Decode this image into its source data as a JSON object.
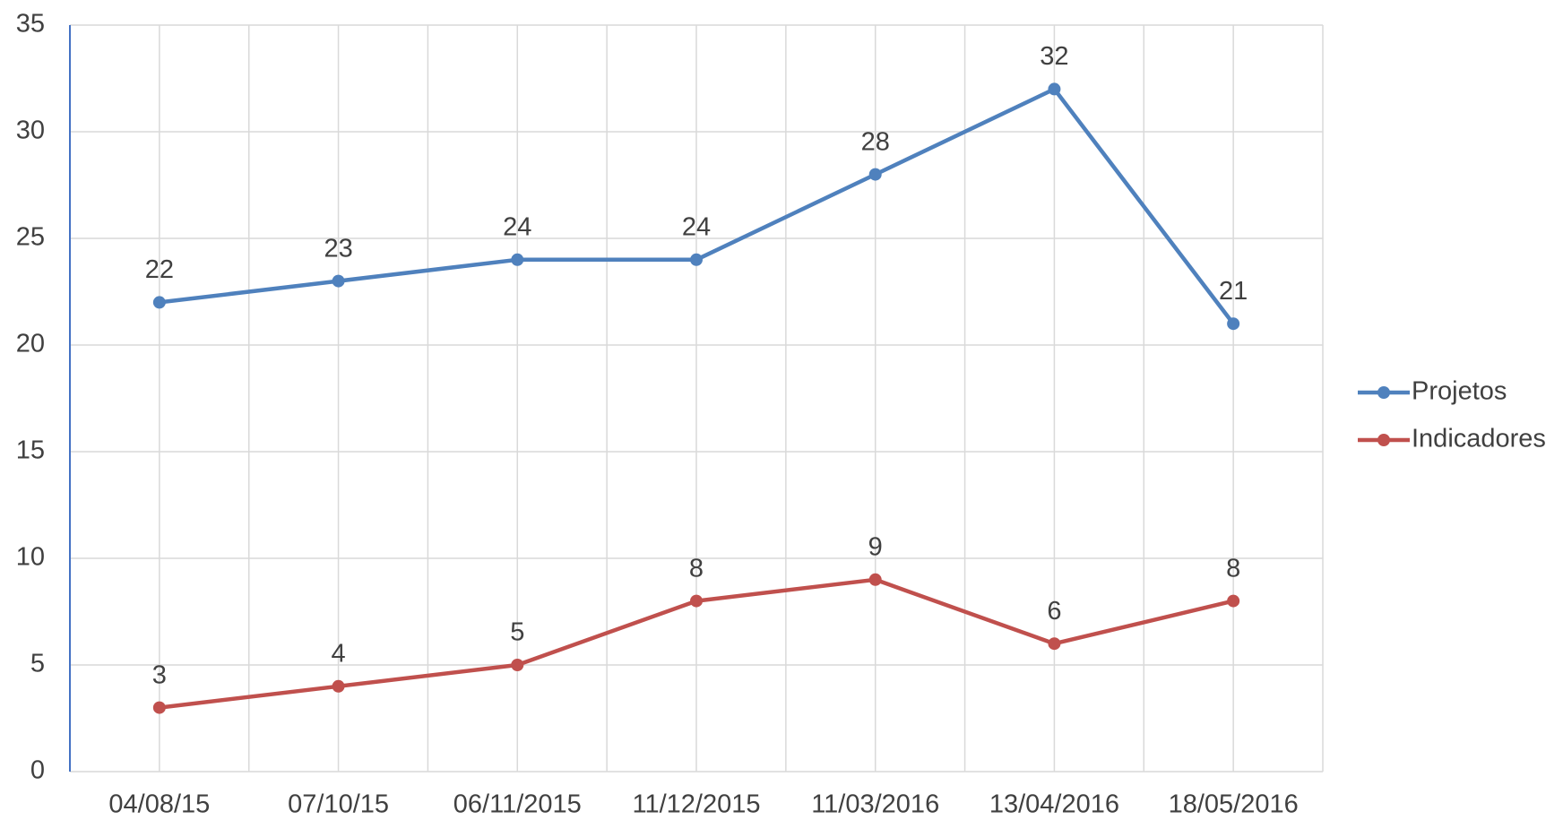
{
  "chart_data": {
    "type": "line",
    "categories": [
      "04/08/15",
      "07/10/15",
      "06/11/2015",
      "11/12/2015",
      "11/03/2016",
      "13/04/2016",
      "18/05/2016"
    ],
    "series": [
      {
        "name": "Projetos",
        "color": "#4f81bd",
        "values": [
          22,
          23,
          24,
          24,
          28,
          32,
          21
        ]
      },
      {
        "name": "Indicadores",
        "color": "#c0504d",
        "values": [
          3,
          4,
          5,
          8,
          9,
          6,
          8
        ]
      }
    ],
    "ylim": [
      0,
      35
    ],
    "yticks": [
      0,
      5,
      10,
      15,
      20,
      25,
      30,
      35
    ],
    "grid": true,
    "legend": "right"
  }
}
